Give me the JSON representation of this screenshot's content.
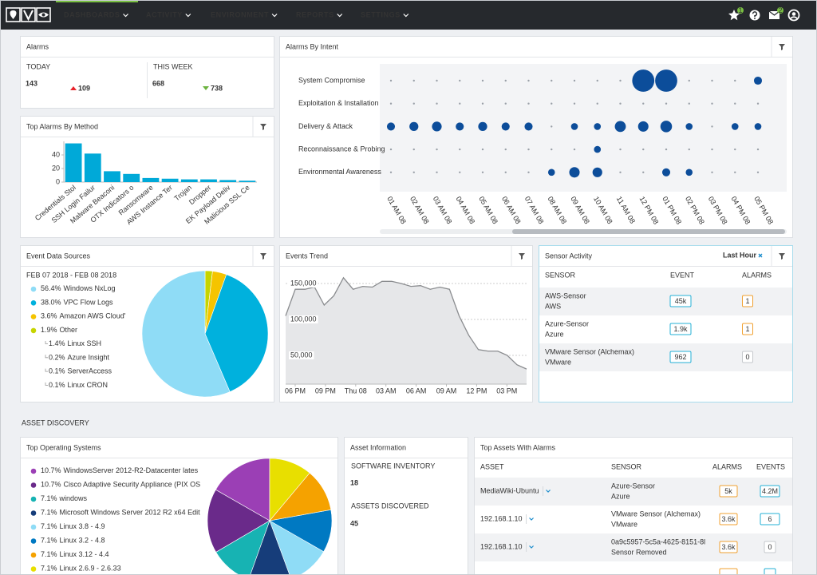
{
  "nav": {
    "items": [
      "DASHBOARDS",
      "ACTIVITY",
      "ENVIRONMENT",
      "REPORTS",
      "SETTINGS"
    ],
    "badges": [
      "1",
      "2"
    ]
  },
  "alarms": {
    "title": "Alarms",
    "today_label": "TODAY",
    "today": 143,
    "today_change": 109,
    "week_label": "THIS WEEK",
    "week": 668,
    "week_change": 738
  },
  "top_alarms_by_method": {
    "type": "bar",
    "title": "Top Alarms By Method",
    "categories": [
      "Credentials Stol",
      "SSH Login Failur",
      "Malware Beaconi",
      "OTX Indicators o",
      "Ransomware",
      "AWS Instance Ter",
      "Trojan",
      "Dropper",
      "EK Payload Deliv",
      "Malicious SSL Ce"
    ],
    "values": [
      57,
      42,
      16,
      12,
      6,
      5,
      4,
      4,
      3,
      2
    ],
    "color": "#00a9d8",
    "ylim": [
      0,
      60
    ],
    "yticks": [
      0,
      20,
      40
    ]
  },
  "alarms_by_intent": {
    "type": "bubble",
    "title": "Alarms By Intent",
    "rows": [
      "System Compromise",
      "Exploitation & Installation",
      "Delivery & Attack",
      "Reconnaissance & Probing",
      "Environmental Awareness"
    ],
    "columns": [
      "01 AM 08",
      "02 AM 08",
      "03 AM 08",
      "04 AM 08",
      "05 AM 08",
      "06 AM 08",
      "07 AM 08",
      "08 AM 08",
      "09 AM 08",
      "10 AM 08",
      "11 AM 08",
      "12 PM 08",
      "01 PM 08",
      "02 PM 08",
      "03 PM 08",
      "04 PM 08",
      "05 PM 08"
    ],
    "values": [
      [
        0,
        0,
        0,
        0,
        0,
        0,
        0,
        0,
        0,
        0,
        0,
        40,
        40,
        0,
        0,
        0,
        2
      ],
      [
        0,
        0,
        0,
        0,
        0,
        0,
        0,
        0,
        0,
        0,
        0,
        0,
        0,
        0,
        0,
        0,
        0
      ],
      [
        2,
        3,
        4,
        2,
        3,
        2,
        2,
        0,
        1,
        1,
        6,
        5,
        7,
        1,
        0,
        1,
        1
      ],
      [
        0,
        0,
        0,
        0,
        0,
        0,
        0,
        0,
        0,
        1,
        0,
        0,
        0,
        0,
        0,
        0,
        0
      ],
      [
        0,
        0,
        0,
        0,
        0,
        0,
        0,
        1,
        5,
        4,
        0,
        0,
        2,
        1,
        0,
        0,
        0
      ]
    ],
    "color": "#0c4d9a"
  },
  "event_data_sources": {
    "type": "pie",
    "title": "Event Data Sources",
    "date_range": "FEB 07 2018 - FEB 08 2018",
    "names": [
      "Windows NxLog",
      "VPC Flow Logs",
      "Amazon AWS Cloud'",
      "Other"
    ],
    "values": [
      56.4,
      38.0,
      3.6,
      1.9
    ],
    "value_labels": [
      "56.4%",
      "38.0%",
      "3.6%",
      "1.9%"
    ],
    "colors": [
      "#8fdcf6",
      "#00b1dd",
      "#f5c400",
      "#c6d400"
    ],
    "other": {
      "names": [
        "Linux SSH",
        "Azure Insight",
        "ServerAccess",
        "Linux CRON"
      ],
      "values": [
        1.4,
        0.2,
        0.1,
        0.1
      ],
      "value_labels": [
        "1.4%",
        "0.2%",
        "0.1%",
        "0.1%"
      ]
    }
  },
  "events_trend": {
    "type": "line",
    "title": "Events Trend",
    "x_labels": [
      "06 PM",
      "09 PM",
      "Thu 08",
      "03 AM",
      "06 AM",
      "09 AM",
      "12 PM",
      "03 PM"
    ],
    "values": [
      105000,
      142000,
      142000,
      145000,
      120000,
      133000,
      158000,
      142000,
      146000,
      145000,
      153000,
      153000,
      150000,
      146000,
      147000,
      142000,
      145000,
      142000,
      105000,
      78000,
      58000,
      56000,
      56000,
      50000,
      37000,
      31000
    ],
    "ylim": [
      10000,
      170000
    ],
    "yticks": [
      {
        "value": 50000,
        "label": "50,000"
      },
      {
        "value": 100000,
        "label": "100,000"
      },
      {
        "value": 150000,
        "label": "150,000"
      }
    ],
    "color": "#8a8c8f",
    "grid": true
  },
  "sensor_activity": {
    "title": "Sensor Activity",
    "filter": "Last Hour",
    "columns": [
      "SENSOR",
      "EVENT",
      "ALARMS"
    ],
    "rows": [
      {
        "name": "AWS-Sensor",
        "type": "AWS",
        "events": "45k",
        "alarms": "1"
      },
      {
        "name": "Azure-Sensor",
        "type": "Azure",
        "events": "1.9k",
        "alarms": "1"
      },
      {
        "name": "VMware Sensor (Alchemax)",
        "type": "VMware",
        "events": "962",
        "alarms": "0"
      }
    ]
  },
  "asset_discovery": "ASSET DISCOVERY",
  "top_operating_systems": {
    "type": "pie",
    "title": "Top Operating Systems",
    "names": [
      "WindowsServer 2012-R2-Datacenter lates",
      "Cisco Adaptive Security Appliance (PIX OS",
      "windows",
      "Microsoft Windows Server 2012 R2 x64 Edit",
      "Linux 3.8 - 4.9",
      "Linux 3.2 - 4.8",
      "Linux 3.12 - 4.4",
      "Linux 2.6.9 - 2.6.33"
    ],
    "values": [
      10.7,
      10.7,
      7.1,
      7.1,
      7.1,
      7.1,
      7.1,
      7.1
    ],
    "value_labels": [
      "10.7%",
      "10.7%",
      "7.1%",
      "7.1%",
      "7.1%",
      "7.1%",
      "7.1%",
      "7.1%"
    ],
    "colors": [
      "#9b3fb5",
      "#6a2a8a",
      "#17b3b3",
      "#163d7a",
      "#8fdcf6",
      "#0079c2",
      "#f5a200",
      "#e8df00"
    ]
  },
  "asset_information": {
    "title": "Asset Information",
    "software_label": "SOFTWARE INVENTORY",
    "software": 18,
    "assets_label": "ASSETS DISCOVERED",
    "assets": 45
  },
  "top_assets_with_alarms": {
    "title": "Top Assets With Alarms",
    "columns": [
      "ASSET",
      "SENSOR",
      "ALARMS",
      "EVENTS"
    ],
    "rows": [
      {
        "asset": "MediaWiki-Ubuntu",
        "sensor": "Azure-Sensor",
        "sensor_type": "Azure",
        "alarms": "5k",
        "events": "4.2M"
      },
      {
        "asset": "192.168.1.10",
        "sensor": "VMware Sensor (Alchemax)",
        "sensor_type": "VMware",
        "alarms": "3.6k",
        "events": "6"
      },
      {
        "asset": "192.168.1.10",
        "sensor": "0a9c5957-5c5a-4625-8151-8l",
        "sensor_type": "Sensor Removed",
        "alarms": "3.6k",
        "events": "0"
      }
    ]
  }
}
